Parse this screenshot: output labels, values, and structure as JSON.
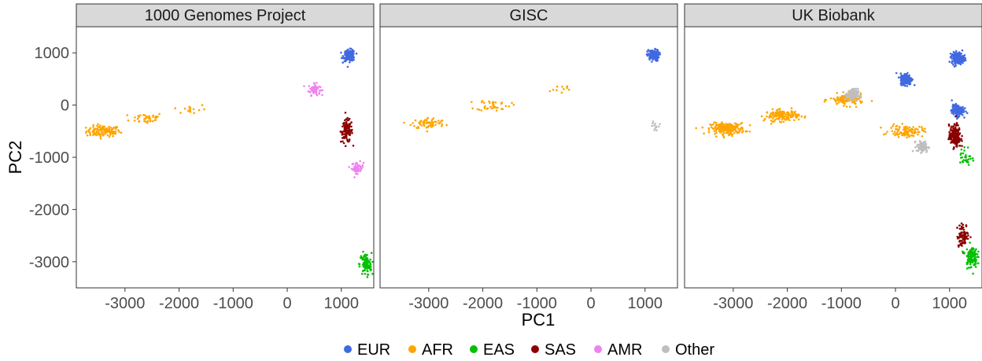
{
  "chart_data": {
    "type": "scatter",
    "title": "",
    "xlabel": "PC1",
    "ylabel": "PC2",
    "xlim": [
      -3900,
      1600
    ],
    "ylim": [
      -3500,
      1500
    ],
    "x_ticks": [
      -3000,
      -2000,
      -1000,
      0,
      1000
    ],
    "y_ticks": [
      -3000,
      -2000,
      -1000,
      0,
      1000
    ],
    "grid": false,
    "legend_position": "bottom",
    "series": [
      {
        "name": "EUR",
        "color": "#4169E1"
      },
      {
        "name": "AFR",
        "color": "#FFA500"
      },
      {
        "name": "EAS",
        "color": "#00C000"
      },
      {
        "name": "SAS",
        "color": "#8B0000"
      },
      {
        "name": "AMR",
        "color": "#EE82EE"
      },
      {
        "name": "Other",
        "color": "#BEBEBE"
      }
    ],
    "panels": [
      {
        "title": "1000 Genomes Project",
        "clusters": [
          {
            "series": "AFR",
            "x": -3400,
            "y": -500,
            "n": 120
          },
          {
            "series": "AFR",
            "x": -2600,
            "y": -250,
            "n": 40
          },
          {
            "series": "AFR",
            "x": -1800,
            "y": -80,
            "n": 15
          },
          {
            "series": "AMR",
            "x": 500,
            "y": 300,
            "n": 60
          },
          {
            "series": "AMR",
            "x": 1300,
            "y": -1200,
            "n": 50
          },
          {
            "series": "SAS",
            "x": 1100,
            "y": -500,
            "n": 110
          },
          {
            "series": "EUR",
            "x": 1150,
            "y": 950,
            "n": 130
          },
          {
            "series": "EAS",
            "x": 1450,
            "y": -3050,
            "n": 100
          }
        ]
      },
      {
        "title": "GISC",
        "clusters": [
          {
            "series": "AFR",
            "x": -3000,
            "y": -350,
            "n": 70
          },
          {
            "series": "AFR",
            "x": -1800,
            "y": 0,
            "n": 40
          },
          {
            "series": "AFR",
            "x": -600,
            "y": 300,
            "n": 10
          },
          {
            "series": "EUR",
            "x": 1150,
            "y": 950,
            "n": 110
          },
          {
            "series": "Other",
            "x": 1200,
            "y": -400,
            "n": 12
          }
        ]
      },
      {
        "title": "UK Biobank",
        "clusters": [
          {
            "series": "AFR",
            "x": -3100,
            "y": -450,
            "n": 220
          },
          {
            "series": "AFR",
            "x": -2100,
            "y": -200,
            "n": 140
          },
          {
            "series": "AFR",
            "x": -900,
            "y": 100,
            "n": 120
          },
          {
            "series": "AFR",
            "x": 200,
            "y": -500,
            "n": 100
          },
          {
            "series": "Other",
            "x": -800,
            "y": 200,
            "n": 120
          },
          {
            "series": "Other",
            "x": 500,
            "y": -800,
            "n": 80
          },
          {
            "series": "EUR",
            "x": 200,
            "y": 500,
            "n": 200
          },
          {
            "series": "EUR",
            "x": 1150,
            "y": 900,
            "n": 250
          },
          {
            "series": "EUR",
            "x": 1150,
            "y": -100,
            "n": 160
          },
          {
            "series": "SAS",
            "x": 1100,
            "y": -600,
            "n": 180
          },
          {
            "series": "SAS",
            "x": 1250,
            "y": -2500,
            "n": 80
          },
          {
            "series": "EAS",
            "x": 1400,
            "y": -2900,
            "n": 110
          },
          {
            "series": "EAS",
            "x": 1300,
            "y": -1000,
            "n": 30
          }
        ]
      }
    ]
  }
}
